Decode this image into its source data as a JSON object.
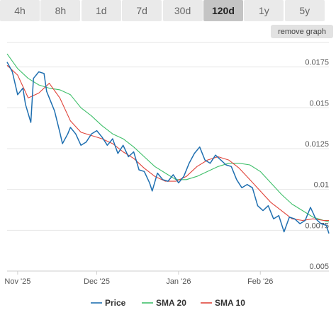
{
  "ranges": {
    "tabs": [
      "4h",
      "8h",
      "1d",
      "7d",
      "30d",
      "120d",
      "1y",
      "5y"
    ],
    "active": "120d"
  },
  "remove_graph_label": "remove graph",
  "colors": {
    "price": "#1f6fb0",
    "sma20": "#3fbf6a",
    "sma10": "#e0443a",
    "grid": "#e6e6e6"
  },
  "chart_data": {
    "type": "line",
    "x_range": [
      "2025-10-28",
      "2026-02-27"
    ],
    "ylim": [
      0.005,
      0.019
    ],
    "y_ticks": [
      0.005,
      0.0075,
      0.01,
      0.0125,
      0.015,
      0.0175
    ],
    "y_tick_labels": [
      "0.005",
      "0.0075",
      "0.01",
      "0.0125",
      "0.015",
      "0.0175"
    ],
    "x_ticks": [
      "2025-11-01",
      "2025-12-01",
      "2026-01-01",
      "2026-02-01"
    ],
    "x_tick_labels": [
      "Nov '25",
      "Dec '25",
      "Jan '26",
      "Feb '26"
    ],
    "grid": "horizontal",
    "legend_position": "bottom",
    "series": [
      {
        "name": "Price",
        "x": [
          "2025-10-28",
          "2025-10-30",
          "2025-11-01",
          "2025-11-03",
          "2025-11-04",
          "2025-11-06",
          "2025-11-07",
          "2025-11-09",
          "2025-11-11",
          "2025-11-12",
          "2025-11-14",
          "2025-11-15",
          "2025-11-17",
          "2025-11-18",
          "2025-11-20",
          "2025-11-21",
          "2025-11-23",
          "2025-11-25",
          "2025-11-27",
          "2025-11-29",
          "2025-12-01",
          "2025-12-03",
          "2025-12-05",
          "2025-12-07",
          "2025-12-09",
          "2025-12-11",
          "2025-12-13",
          "2025-12-15",
          "2025-12-17",
          "2025-12-19",
          "2025-12-21",
          "2025-12-22",
          "2025-12-24",
          "2025-12-26",
          "2025-12-28",
          "2025-12-30",
          "2026-01-01",
          "2026-01-03",
          "2026-01-05",
          "2026-01-07",
          "2026-01-09",
          "2026-01-11",
          "2026-01-13",
          "2026-01-15",
          "2026-01-17",
          "2026-01-19",
          "2026-01-21",
          "2026-01-23",
          "2026-01-25",
          "2026-01-27",
          "2026-01-29",
          "2026-01-31",
          "2026-02-02",
          "2026-02-04",
          "2026-02-06",
          "2026-02-08",
          "2026-02-10",
          "2026-02-12",
          "2026-02-14",
          "2026-02-16",
          "2026-02-18",
          "2026-02-20",
          "2026-02-22",
          "2026-02-24",
          "2026-02-26",
          "2026-02-27"
        ],
        "values": [
          0.0178,
          0.0172,
          0.0158,
          0.0162,
          0.0152,
          0.0141,
          0.0168,
          0.0172,
          0.0171,
          0.016,
          0.0152,
          0.0148,
          0.0135,
          0.0128,
          0.0134,
          0.0138,
          0.0134,
          0.0127,
          0.0129,
          0.0134,
          0.0136,
          0.0132,
          0.0127,
          0.0131,
          0.0122,
          0.0127,
          0.012,
          0.0123,
          0.0112,
          0.0111,
          0.0104,
          0.0099,
          0.011,
          0.0106,
          0.0105,
          0.0109,
          0.0104,
          0.0108,
          0.0116,
          0.0122,
          0.0126,
          0.0118,
          0.0116,
          0.0121,
          0.0118,
          0.0115,
          0.0114,
          0.0106,
          0.0101,
          0.0103,
          0.0101,
          0.009,
          0.0087,
          0.009,
          0.0082,
          0.0084,
          0.0074,
          0.0083,
          0.0082,
          0.0079,
          0.0081,
          0.0089,
          0.0082,
          0.0079,
          0.0078,
          0.0073
        ]
      },
      {
        "name": "SMA 20",
        "x": [
          "2025-10-28",
          "2025-11-01",
          "2025-11-05",
          "2025-11-09",
          "2025-11-13",
          "2025-11-17",
          "2025-11-21",
          "2025-11-25",
          "2025-11-29",
          "2025-12-03",
          "2025-12-07",
          "2025-12-11",
          "2025-12-15",
          "2025-12-19",
          "2025-12-23",
          "2025-12-27",
          "2025-12-31",
          "2026-01-04",
          "2026-01-08",
          "2026-01-12",
          "2026-01-16",
          "2026-01-20",
          "2026-01-24",
          "2026-01-28",
          "2026-02-01",
          "2026-02-05",
          "2026-02-09",
          "2026-02-13",
          "2026-02-17",
          "2026-02-21",
          "2026-02-25",
          "2026-02-27"
        ],
        "values": [
          0.0183,
          0.0174,
          0.0168,
          0.0164,
          0.0162,
          0.0161,
          0.0158,
          0.015,
          0.0145,
          0.0139,
          0.0134,
          0.0131,
          0.0126,
          0.012,
          0.0114,
          0.011,
          0.0106,
          0.0106,
          0.0108,
          0.0111,
          0.0114,
          0.0116,
          0.0116,
          0.0115,
          0.0111,
          0.0104,
          0.0097,
          0.0091,
          0.0087,
          0.0083,
          0.0081,
          0.008
        ]
      },
      {
        "name": "SMA 10",
        "x": [
          "2025-10-28",
          "2025-11-01",
          "2025-11-05",
          "2025-11-09",
          "2025-11-13",
          "2025-11-17",
          "2025-11-21",
          "2025-11-25",
          "2025-11-29",
          "2025-12-03",
          "2025-12-07",
          "2025-12-11",
          "2025-12-15",
          "2025-12-19",
          "2025-12-23",
          "2025-12-27",
          "2025-12-31",
          "2026-01-04",
          "2026-01-08",
          "2026-01-12",
          "2026-01-16",
          "2026-01-20",
          "2026-01-24",
          "2026-01-28",
          "2026-02-01",
          "2026-02-05",
          "2026-02-09",
          "2026-02-13",
          "2026-02-17",
          "2026-02-21",
          "2026-02-25",
          "2026-02-27"
        ],
        "values": [
          0.0176,
          0.017,
          0.0156,
          0.0159,
          0.0165,
          0.0156,
          0.0142,
          0.0135,
          0.0133,
          0.0131,
          0.0128,
          0.0123,
          0.0119,
          0.0113,
          0.0108,
          0.0105,
          0.0105,
          0.0108,
          0.0114,
          0.0118,
          0.012,
          0.0118,
          0.0113,
          0.0106,
          0.0099,
          0.0092,
          0.0087,
          0.0082,
          0.0081,
          0.0082,
          0.0081,
          0.0081
        ]
      }
    ]
  }
}
